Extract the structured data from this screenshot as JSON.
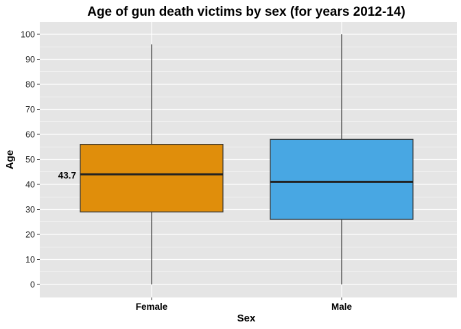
{
  "chart_data": {
    "type": "boxplot",
    "title": "Age of gun death victims by sex (for years 2012-14)",
    "xlabel": "Sex",
    "ylabel": "Age",
    "ylim": [
      -5,
      105
    ],
    "yticks": [
      0,
      10,
      20,
      30,
      40,
      50,
      60,
      70,
      80,
      90,
      100
    ],
    "grid": true,
    "legend": "none",
    "categories": [
      "Female",
      "Male"
    ],
    "boxes": [
      {
        "category": "Female",
        "min": 0,
        "q1": 29,
        "median": 44,
        "q3": 56,
        "max": 96,
        "color": "#E08E0B"
      },
      {
        "category": "Male",
        "min": 0,
        "q1": 26,
        "median": 41,
        "q3": 58,
        "max": 100,
        "color": "#48A7E3"
      }
    ],
    "annotations": [
      {
        "text": "43.7",
        "category": "Female",
        "y": 43.7
      }
    ]
  },
  "colors": {
    "panel_background": "#E5E5E5",
    "grid": "#FFFFFF"
  }
}
